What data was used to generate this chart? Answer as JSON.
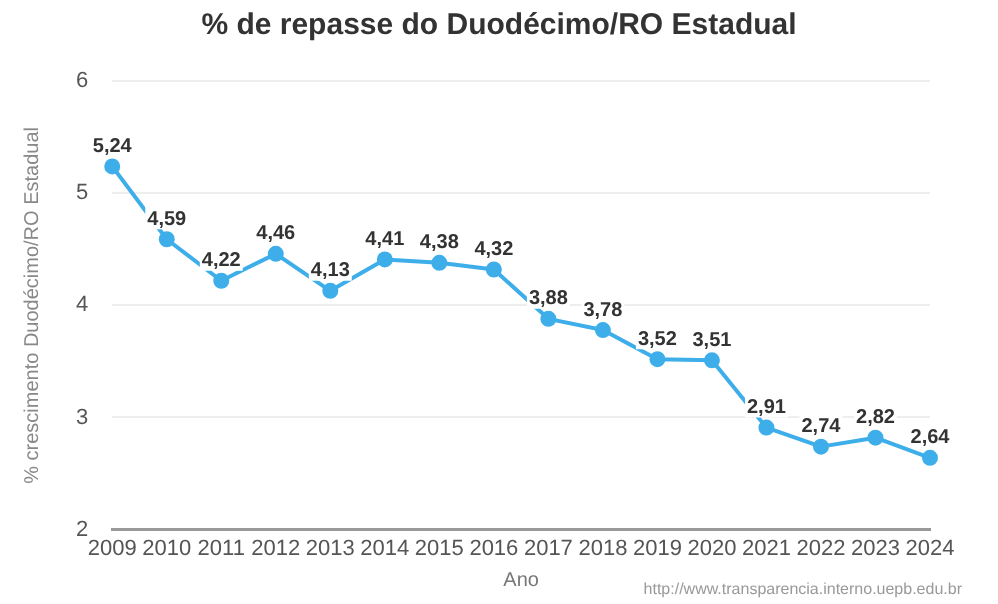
{
  "chart_data": {
    "type": "line",
    "title": "% de repasse do Duodécimo/RO Estadual",
    "xlabel": "Ano",
    "ylabel": "% crescimento Duodécimo/RO Estadual",
    "categories": [
      "2009",
      "2010",
      "2011",
      "2012",
      "2013",
      "2014",
      "2015",
      "2016",
      "2017",
      "2018",
      "2019",
      "2020",
      "2021",
      "2022",
      "2023",
      "2024"
    ],
    "series": [
      {
        "color": "#3daee9",
        "values": [
          5.24,
          4.59,
          4.22,
          4.46,
          4.13,
          4.41,
          4.38,
          4.32,
          3.88,
          3.78,
          3.52,
          3.51,
          2.91,
          2.74,
          2.82,
          2.64
        ],
        "value_labels": [
          "5,24",
          "4,59",
          "4,22",
          "4,46",
          "4,13",
          "4,41",
          "4,38",
          "4,32",
          "3,88",
          "3,78",
          "3,52",
          "3,51",
          "2,91",
          "2,74",
          "2,82",
          "2,64"
        ]
      }
    ],
    "ylim": [
      2,
      6
    ],
    "yticks": [
      2,
      3,
      4,
      5,
      6
    ],
    "grid": "y",
    "legend": false,
    "marker": "circle",
    "line_style": "solid",
    "annotations": [
      "http://www.transparencia.interno.uepb.edu.br"
    ]
  }
}
